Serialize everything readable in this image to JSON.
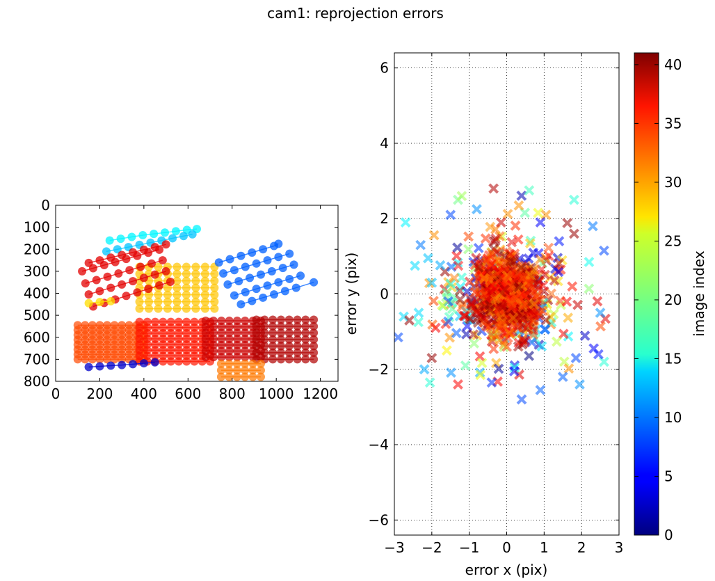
{
  "figure_title": "cam1: reprojection errors",
  "chart_data": [
    {
      "type": "scatter",
      "name": "corner-positions",
      "title": "",
      "xlabel": "",
      "ylabel": "",
      "xlim": [
        0,
        1280
      ],
      "ylim": [
        800,
        0
      ],
      "y_inverted": true,
      "xticks": [
        0,
        200,
        400,
        600,
        800,
        1000,
        1200
      ],
      "yticks": [
        0,
        100,
        200,
        300,
        400,
        500,
        600,
        700,
        800
      ],
      "grid": false,
      "description_of_marks": "circle markers connected by lines along checkerboard rows, colored by image index",
      "series": [
        {
          "name": "img-cyan-top",
          "color_index": 15,
          "points": [
            [
              245,
              160
            ],
            [
              295,
              152
            ],
            [
              345,
              144
            ],
            [
              395,
              136
            ],
            [
              445,
              130
            ],
            [
              495,
              124
            ],
            [
              545,
              118
            ],
            [
              595,
              112
            ],
            [
              640,
              108
            ]
          ]
        },
        {
          "name": "img-cyan-2",
          "color_index": 13,
          "points": [
            [
              230,
              210
            ],
            [
              280,
              200
            ],
            [
              330,
              190
            ],
            [
              380,
              180
            ],
            [
              430,
              170
            ],
            [
              480,
              160
            ],
            [
              530,
              150
            ],
            [
              580,
              140
            ],
            [
              620,
              132
            ]
          ]
        },
        {
          "name": "img-red-1",
          "color_index": 37,
          "points": [
            [
              150,
              262
            ],
            [
              200,
              250
            ],
            [
              250,
              238
            ],
            [
              300,
              226
            ],
            [
              350,
              214
            ],
            [
              400,
              202
            ],
            [
              450,
              190
            ],
            [
              500,
              178
            ]
          ]
        },
        {
          "name": "img-red-2",
          "color_index": 37,
          "points": [
            [
              120,
              300
            ],
            [
              170,
              286
            ],
            [
              220,
              272
            ],
            [
              270,
              258
            ],
            [
              320,
              244
            ],
            [
              370,
              230
            ],
            [
              420,
              216
            ],
            [
              470,
              202
            ]
          ]
        },
        {
          "name": "img-red-3",
          "color_index": 37,
          "points": [
            [
              135,
              355
            ],
            [
              185,
              340
            ],
            [
              235,
              325
            ],
            [
              285,
              310
            ],
            [
              335,
              295
            ],
            [
              385,
              280
            ],
            [
              435,
              265
            ],
            [
              485,
              250
            ]
          ]
        },
        {
          "name": "img-red-4",
          "color_index": 37,
          "points": [
            [
              150,
              405
            ],
            [
              200,
              390
            ],
            [
              250,
              375
            ],
            [
              300,
              360
            ],
            [
              350,
              345
            ],
            [
              400,
              330
            ],
            [
              450,
              315
            ],
            [
              500,
              300
            ]
          ]
        },
        {
          "name": "img-red-5",
          "color_index": 37,
          "points": [
            [
              170,
              460
            ],
            [
              220,
              444
            ],
            [
              270,
              428
            ],
            [
              320,
              412
            ],
            [
              370,
              396
            ],
            [
              420,
              380
            ],
            [
              470,
              364
            ],
            [
              520,
              348
            ]
          ]
        },
        {
          "name": "img-blue-right-1",
          "color_index": 9,
          "points": [
            [
              740,
              260
            ],
            [
              790,
              245
            ],
            [
              840,
              230
            ],
            [
              890,
              215
            ],
            [
              940,
              200
            ],
            [
              990,
              185
            ],
            [
              1010,
              175
            ]
          ]
        },
        {
          "name": "img-blue-right-2",
          "color_index": 9,
          "points": [
            [
              760,
              310
            ],
            [
              810,
              295
            ],
            [
              860,
              280
            ],
            [
              910,
              265
            ],
            [
              960,
              250
            ],
            [
              1010,
              235
            ],
            [
              1060,
              220
            ]
          ]
        },
        {
          "name": "img-blue-right-3",
          "color_index": 9,
          "points": [
            [
              780,
              360
            ],
            [
              830,
              345
            ],
            [
              880,
              330
            ],
            [
              930,
              315
            ],
            [
              980,
              300
            ],
            [
              1030,
              285
            ],
            [
              1080,
              270
            ]
          ]
        },
        {
          "name": "img-blue-right-4",
          "color_index": 9,
          "points": [
            [
              810,
              410
            ],
            [
              860,
              395
            ],
            [
              910,
              380
            ],
            [
              960,
              365
            ],
            [
              1010,
              350
            ],
            [
              1060,
              335
            ],
            [
              1110,
              320
            ]
          ]
        },
        {
          "name": "img-blue-right-5",
          "color_index": 9,
          "points": [
            [
              840,
              450
            ],
            [
              890,
              435
            ],
            [
              940,
              420
            ],
            [
              990,
              405
            ],
            [
              1040,
              390
            ],
            [
              1090,
              375
            ],
            [
              1170,
              350
            ]
          ]
        },
        {
          "name": "img-darkblue-bottom",
          "color_index": 3,
          "points": [
            [
              150,
              735
            ],
            [
              200,
              732
            ],
            [
              250,
              729
            ],
            [
              300,
              726
            ],
            [
              350,
              722
            ],
            [
              400,
              718
            ],
            [
              450,
              714
            ]
          ]
        },
        {
          "name": "img-yellow-left",
          "color_index": 27,
          "points": [
            [
              150,
              445
            ],
            [
              200,
              440
            ],
            [
              250,
              436
            ]
          ]
        }
      ],
      "grids": [
        {
          "name": "img-yellow-top",
          "color_index": 28,
          "x0": 380,
          "x1": 720,
          "y0": 280,
          "y1": 470,
          "cols": 9,
          "rows": 7
        },
        {
          "name": "img-orange-left",
          "color_index": 33,
          "x0": 100,
          "x1": 400,
          "y0": 545,
          "y1": 700,
          "cols": 10,
          "rows": 8
        },
        {
          "name": "img-brown-mid",
          "color_index": 35,
          "x0": 380,
          "x1": 700,
          "y0": 530,
          "y1": 710,
          "cols": 10,
          "rows": 8
        },
        {
          "name": "img-red-mid",
          "color_index": 38,
          "x0": 680,
          "x1": 930,
          "y0": 525,
          "y1": 690,
          "cols": 8,
          "rows": 7
        },
        {
          "name": "img-darkred-right",
          "color_index": 39,
          "x0": 910,
          "x1": 1170,
          "y0": 520,
          "y1": 700,
          "cols": 8,
          "rows": 7
        },
        {
          "name": "img-tan-bottom",
          "color_index": 31,
          "x0": 750,
          "x1": 930,
          "y0": 720,
          "y1": 780,
          "cols": 6,
          "rows": 3
        }
      ]
    },
    {
      "type": "scatter",
      "name": "reprojection-errors",
      "title": "",
      "xlabel": "error x (pix)",
      "ylabel": "error y (pix)",
      "xlim": [
        -3,
        3
      ],
      "ylim": [
        -6.4,
        6.4
      ],
      "xticks": [
        -3,
        -2,
        -1,
        0,
        1,
        2,
        3
      ],
      "yticks": [
        -6,
        -4,
        -2,
        0,
        2,
        4,
        6
      ],
      "xtick_labels": [
        "−3",
        "−2",
        "−1",
        "0",
        "1",
        "2",
        "3"
      ],
      "ytick_labels": [
        "−6",
        "−4",
        "−2",
        "0",
        "2",
        "4",
        "6"
      ],
      "grid": true,
      "marker": "x",
      "description_of_marks": "dense cluster of x markers centred at (0,0) with spread about 1 pixel, outliers out to about 2.7 pixels, colored by image index",
      "outliers": [
        [
          -2.7,
          1.9,
          15
        ],
        [
          -2.6,
          -0.7,
          40
        ],
        [
          -2.9,
          -1.15,
          8
        ],
        [
          -2.2,
          -2.0,
          12
        ],
        [
          -2.05,
          -2.35,
          17
        ],
        [
          -2.0,
          -1.7,
          40
        ],
        [
          -1.3,
          -2.4,
          36
        ],
        [
          -0.7,
          -2.15,
          25
        ],
        [
          -0.4,
          -2.35,
          7
        ],
        [
          0.4,
          -2.8,
          8
        ],
        [
          0.9,
          -2.55,
          9
        ],
        [
          1.95,
          -2.4,
          11
        ],
        [
          -0.35,
          2.8,
          39
        ],
        [
          -1.3,
          2.5,
          20
        ],
        [
          -1.2,
          2.6,
          22
        ],
        [
          0.6,
          2.75,
          18
        ],
        [
          1.8,
          2.5,
          17
        ],
        [
          1.05,
          2.1,
          30
        ],
        [
          2.3,
          1.8,
          10
        ],
        [
          2.6,
          1.15,
          8
        ],
        [
          2.5,
          -0.5,
          11
        ],
        [
          2.6,
          -1.8,
          17
        ],
        [
          2.45,
          -1.6,
          6
        ],
        [
          1.85,
          -1.7,
          8
        ],
        [
          1.8,
          1.6,
          40
        ],
        [
          1.75,
          0.2,
          35
        ],
        [
          -2.3,
          1.3,
          10
        ],
        [
          -2.45,
          0.75,
          14
        ],
        [
          -2.0,
          0.3,
          13
        ],
        [
          -1.6,
          -1.5,
          26
        ],
        [
          -1.5,
          2.1,
          8
        ],
        [
          -0.8,
          2.25,
          11
        ],
        [
          0.9,
          1.9,
          5
        ],
        [
          1.5,
          -2.2,
          9
        ],
        [
          -1.9,
          -0.9,
          36
        ],
        [
          2.2,
          0.85,
          16
        ],
        [
          -2.35,
          -0.5,
          14
        ],
        [
          -2.1,
          0.95,
          13
        ],
        [
          1.4,
          1.4,
          6
        ],
        [
          -1.1,
          -1.9,
          19
        ],
        [
          0.2,
          -2.05,
          5
        ],
        [
          -0.15,
          1.9,
          38
        ]
      ],
      "cluster": {
        "center": [
          0,
          0
        ],
        "sigma_x": 0.75,
        "sigma_y": 0.85,
        "count": 700
      }
    }
  ],
  "colorbar": {
    "label": "image index",
    "min": 0,
    "max": 41,
    "ticks": [
      0,
      5,
      10,
      15,
      20,
      25,
      30,
      35,
      40
    ],
    "colormap": "jet"
  }
}
